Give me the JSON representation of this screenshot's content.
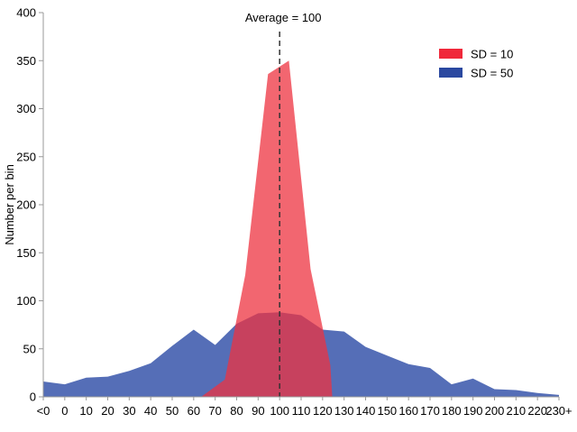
{
  "chart_data": {
    "type": "area",
    "ylabel": "Number per bin",
    "xlabel": "",
    "ylim": [
      0,
      400
    ],
    "yticks": [
      0,
      50,
      100,
      150,
      200,
      250,
      300,
      350,
      400
    ],
    "xtick_labels": [
      "<0",
      "0",
      "10",
      "20",
      "30",
      "40",
      "50",
      "60",
      "70",
      "80",
      "90",
      "100",
      "110",
      "120",
      "130",
      "140",
      "150",
      "160",
      "170",
      "180",
      "190",
      "200",
      "210",
      "220",
      "230+"
    ],
    "xtick_values": [
      -10,
      0,
      10,
      20,
      30,
      40,
      50,
      60,
      70,
      80,
      90,
      100,
      110,
      120,
      130,
      140,
      150,
      160,
      170,
      180,
      190,
      200,
      210,
      220,
      230
    ],
    "grid": false,
    "legend_position": "top-right",
    "annotation": {
      "label": "Average = 100",
      "x": 100
    },
    "series": [
      {
        "name": "SD = 50",
        "color": "#3d5aad",
        "legend_color": "#2a48a0",
        "opacity": 0.88,
        "x": [
          -10,
          0,
          10,
          20,
          30,
          40,
          50,
          60,
          70,
          80,
          90,
          100,
          110,
          120,
          130,
          140,
          150,
          160,
          170,
          180,
          190,
          200,
          210,
          220,
          230
        ],
        "y": [
          16,
          13,
          20,
          21,
          27,
          35,
          53,
          70,
          54,
          76,
          87,
          88,
          85,
          70,
          68,
          52,
          43,
          34,
          30,
          13,
          19,
          8,
          7,
          4,
          2
        ]
      },
      {
        "name": "SD = 10",
        "color": "#ee3340",
        "legend_color": "#f0283a",
        "opacity": 0.75,
        "x": [
          63.5,
          74.5,
          84,
          94.6,
          104.3,
          114.4,
          123.6,
          124.5
        ],
        "y": [
          0,
          18,
          127,
          336,
          350,
          133,
          33,
          0
        ]
      }
    ]
  }
}
